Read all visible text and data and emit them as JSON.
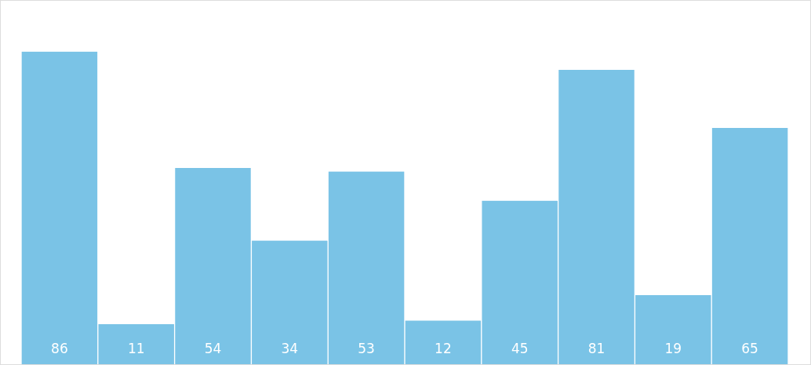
{
  "chart_data": {
    "type": "bar",
    "categories": [
      null,
      null,
      null,
      null,
      null,
      null,
      null,
      null,
      null,
      null
    ],
    "values": [
      86,
      11,
      54,
      34,
      53,
      12,
      45,
      81,
      19,
      65
    ],
    "color": "#7ac3e6",
    "ylim": [
      0,
      100
    ],
    "data_labels": true,
    "legend": false,
    "grid": false,
    "tick_labels": false
  }
}
